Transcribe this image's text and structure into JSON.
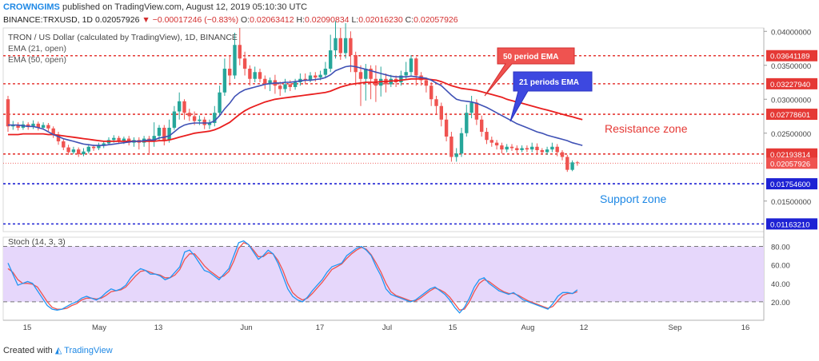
{
  "header": {
    "author": "CROWNGIMS",
    "published": "published on TradingView.com, August 12, 2019 05:10:30 UTC",
    "symbol": "BINANCE:TRXUSD, 1D",
    "last": "0.02057926",
    "change": "−0.00017246 (−0.83%)",
    "o_label": "O:",
    "o": "0.02063412",
    "h_label": "H:",
    "h": "0.02090834",
    "l_label": "L:",
    "l": "0.02016230",
    "c_label": "C:",
    "c": "0.02057926"
  },
  "footer": {
    "created_with": "Created with",
    "brand": "TradingView"
  },
  "colors": {
    "up": "#26a69a",
    "down": "#ef5350",
    "ema21": "#3f51b5",
    "ema50": "#e91e1e",
    "resistance": "#e53935",
    "support": "#1e22d4",
    "stoch_bg": "#e6d7fb",
    "stoch_k": "#2196f3",
    "stoch_d": "#ef5350"
  },
  "chart_data": [
    {
      "type": "line",
      "title": "TRON / US Dollar (calculated by TradingView), 1D, BINANCE",
      "legend": [
        "EMA (21, open)",
        "EMA (50, open)"
      ],
      "price_labels": [
        "0.04000000",
        "0.03500000",
        "0.03000000",
        "0.02500000",
        "0.01500000"
      ],
      "x_labels": [
        "15",
        "May",
        "13",
        "Jun",
        "17",
        "Jul",
        "15",
        "Aug",
        "12",
        "Sep",
        "16"
      ],
      "ylim": [
        0.0105,
        0.0405
      ],
      "resistance_levels": [
        "0.03641189",
        "0.03227940",
        "0.02778601",
        "0.02193814"
      ],
      "support_levels": [
        "0.01754600",
        "0.01163210"
      ],
      "current_price": "0.02057926",
      "annotations": [
        "50 period EMA",
        "21 periods EMA",
        "Resistance zone",
        "Support zone"
      ],
      "candles": [
        [
          0.03,
          0.026,
          0.0305,
          0.0252
        ],
        [
          0.026,
          0.0262,
          0.0268,
          0.0255
        ],
        [
          0.0262,
          0.0258,
          0.0266,
          0.0254
        ],
        [
          0.0258,
          0.0263,
          0.0268,
          0.0255
        ],
        [
          0.0263,
          0.0259,
          0.0266,
          0.0255
        ],
        [
          0.0259,
          0.0264,
          0.0269,
          0.0256
        ],
        [
          0.0264,
          0.0258,
          0.0267,
          0.0254
        ],
        [
          0.0258,
          0.0262,
          0.0266,
          0.0255
        ],
        [
          0.0262,
          0.0257,
          0.0265,
          0.0253
        ],
        [
          0.0257,
          0.0248,
          0.026,
          0.0243
        ],
        [
          0.0248,
          0.0238,
          0.0252,
          0.0233
        ],
        [
          0.0238,
          0.0229,
          0.0242,
          0.0225
        ],
        [
          0.0229,
          0.0222,
          0.0233,
          0.0218
        ],
        [
          0.0222,
          0.0226,
          0.023,
          0.0219
        ],
        [
          0.0226,
          0.0219,
          0.0229,
          0.0215
        ],
        [
          0.0219,
          0.0223,
          0.0228,
          0.0216
        ],
        [
          0.0223,
          0.023,
          0.0234,
          0.022
        ],
        [
          0.023,
          0.0228,
          0.0233,
          0.0224
        ],
        [
          0.0228,
          0.0232,
          0.0236,
          0.0225
        ],
        [
          0.0232,
          0.0235,
          0.0239,
          0.0228
        ],
        [
          0.0235,
          0.024,
          0.0244,
          0.0232
        ],
        [
          0.024,
          0.0243,
          0.0247,
          0.0236
        ],
        [
          0.0243,
          0.0238,
          0.0246,
          0.0234
        ],
        [
          0.0238,
          0.0242,
          0.0245,
          0.0234
        ],
        [
          0.0242,
          0.0236,
          0.0246,
          0.0232
        ],
        [
          0.0236,
          0.024,
          0.0244,
          0.023
        ],
        [
          0.024,
          0.0236,
          0.0244,
          0.0226
        ],
        [
          0.0236,
          0.0242,
          0.0246,
          0.023
        ],
        [
          0.0242,
          0.0238,
          0.0246,
          0.0218
        ],
        [
          0.0238,
          0.0246,
          0.0266,
          0.023
        ],
        [
          0.0246,
          0.0258,
          0.0262,
          0.024
        ],
        [
          0.0258,
          0.024,
          0.0262,
          0.0232
        ],
        [
          0.024,
          0.0258,
          0.027,
          0.0236
        ],
        [
          0.0258,
          0.0282,
          0.029,
          0.0255
        ],
        [
          0.0282,
          0.0297,
          0.031,
          0.027
        ],
        [
          0.0297,
          0.028,
          0.03,
          0.027
        ],
        [
          0.028,
          0.0275,
          0.0286,
          0.0268
        ],
        [
          0.0275,
          0.0268,
          0.0282,
          0.0262
        ],
        [
          0.0268,
          0.027,
          0.0276,
          0.0262
        ],
        [
          0.027,
          0.0262,
          0.0274,
          0.0256
        ],
        [
          0.0262,
          0.0265,
          0.027,
          0.0256
        ],
        [
          0.0265,
          0.028,
          0.029,
          0.026
        ],
        [
          0.028,
          0.031,
          0.032,
          0.0276
        ],
        [
          0.031,
          0.0345,
          0.036,
          0.0305
        ],
        [
          0.0345,
          0.0335,
          0.0365,
          0.032
        ],
        [
          0.0335,
          0.038,
          0.0398,
          0.033
        ],
        [
          0.038,
          0.036,
          0.0405,
          0.035
        ],
        [
          0.036,
          0.0345,
          0.037,
          0.0335
        ],
        [
          0.0345,
          0.033,
          0.035,
          0.032
        ],
        [
          0.033,
          0.034,
          0.0348,
          0.0325
        ],
        [
          0.034,
          0.033,
          0.0345,
          0.0325
        ],
        [
          0.033,
          0.0322,
          0.0335,
          0.0315
        ],
        [
          0.0322,
          0.0328,
          0.0332,
          0.0312
        ],
        [
          0.0328,
          0.032,
          0.0336,
          0.0308
        ],
        [
          0.032,
          0.0315,
          0.0326,
          0.0305
        ],
        [
          0.0315,
          0.0322,
          0.033,
          0.031
        ],
        [
          0.0322,
          0.0318,
          0.0328,
          0.0312
        ],
        [
          0.0318,
          0.0325,
          0.033,
          0.0314
        ],
        [
          0.0325,
          0.033,
          0.0338,
          0.032
        ],
        [
          0.033,
          0.0328,
          0.0338,
          0.0322
        ],
        [
          0.0328,
          0.0335,
          0.034,
          0.0325
        ],
        [
          0.0335,
          0.0332,
          0.034,
          0.0326
        ],
        [
          0.0332,
          0.0336,
          0.0342,
          0.0328
        ],
        [
          0.0336,
          0.0345,
          0.0355,
          0.0332
        ],
        [
          0.0345,
          0.0372,
          0.0395,
          0.034
        ],
        [
          0.0372,
          0.039,
          0.0415,
          0.036
        ],
        [
          0.039,
          0.0368,
          0.0405,
          0.0358
        ],
        [
          0.0368,
          0.039,
          0.0412,
          0.036
        ],
        [
          0.039,
          0.0365,
          0.04,
          0.034
        ],
        [
          0.0365,
          0.034,
          0.037,
          0.032
        ],
        [
          0.034,
          0.033,
          0.035,
          0.029
        ],
        [
          0.033,
          0.0345,
          0.0352,
          0.0298
        ],
        [
          0.0345,
          0.033,
          0.035,
          0.03
        ],
        [
          0.033,
          0.032,
          0.035,
          0.0296
        ],
        [
          0.032,
          0.033,
          0.0348,
          0.0304
        ],
        [
          0.033,
          0.0322,
          0.0338,
          0.031
        ],
        [
          0.0322,
          0.033,
          0.0336,
          0.0318
        ],
        [
          0.033,
          0.0325,
          0.0335,
          0.0318
        ],
        [
          0.0325,
          0.0335,
          0.0342,
          0.032
        ],
        [
          0.0335,
          0.034,
          0.0355,
          0.0328
        ],
        [
          0.034,
          0.036,
          0.0365,
          0.0335
        ],
        [
          0.036,
          0.0335,
          0.0362,
          0.032
        ],
        [
          0.0335,
          0.0328,
          0.034,
          0.032
        ],
        [
          0.0328,
          0.032,
          0.0332,
          0.031
        ],
        [
          0.032,
          0.03,
          0.0325,
          0.029
        ],
        [
          0.03,
          0.029,
          0.0305,
          0.0278
        ],
        [
          0.029,
          0.027,
          0.0295,
          0.026
        ],
        [
          0.027,
          0.0245,
          0.028,
          0.0238
        ],
        [
          0.0245,
          0.0215,
          0.0252,
          0.0208
        ],
        [
          0.0215,
          0.022,
          0.0228,
          0.0208
        ],
        [
          0.022,
          0.025,
          0.0258,
          0.0215
        ],
        [
          0.025,
          0.028,
          0.0292,
          0.0245
        ],
        [
          0.028,
          0.0295,
          0.0305,
          0.0272
        ],
        [
          0.0295,
          0.027,
          0.03,
          0.0262
        ],
        [
          0.027,
          0.0252,
          0.0276,
          0.0245
        ],
        [
          0.0252,
          0.024,
          0.0258,
          0.0234
        ],
        [
          0.024,
          0.0236,
          0.0245,
          0.023
        ],
        [
          0.0236,
          0.0232,
          0.024,
          0.0226
        ],
        [
          0.0232,
          0.0226,
          0.0236,
          0.022
        ],
        [
          0.0226,
          0.023,
          0.0234,
          0.0222
        ],
        [
          0.023,
          0.0228,
          0.0234,
          0.0224
        ],
        [
          0.0228,
          0.0225,
          0.0232,
          0.022
        ],
        [
          0.0225,
          0.0228,
          0.0232,
          0.0222
        ],
        [
          0.0228,
          0.0226,
          0.0232,
          0.0222
        ],
        [
          0.0226,
          0.023,
          0.0236,
          0.0222
        ],
        [
          0.023,
          0.0225,
          0.0235,
          0.022
        ],
        [
          0.0225,
          0.0222,
          0.0228,
          0.0218
        ],
        [
          0.0222,
          0.0226,
          0.023,
          0.0218
        ],
        [
          0.0226,
          0.023,
          0.0236,
          0.0222
        ],
        [
          0.023,
          0.0222,
          0.0234,
          0.0216
        ],
        [
          0.0222,
          0.0215,
          0.0225,
          0.021
        ],
        [
          0.0215,
          0.0196,
          0.0218,
          0.0193
        ],
        [
          0.0196,
          0.0207,
          0.021,
          0.0194
        ],
        [
          0.0207,
          0.0206,
          0.0209,
          0.0202
        ]
      ],
      "ema21": [
        0.0262,
        0.0262,
        0.0262,
        0.0261,
        0.026,
        0.026,
        0.0258,
        0.0256,
        0.0252,
        0.0248,
        0.0245,
        0.0242,
        0.024,
        0.0238,
        0.0236,
        0.0234,
        0.0233,
        0.0232,
        0.0232,
        0.0232,
        0.0233,
        0.0234,
        0.0235,
        0.0236,
        0.0237,
        0.0238,
        0.0238,
        0.0239,
        0.024,
        0.024,
        0.0243,
        0.0244,
        0.0246,
        0.0252,
        0.0258,
        0.0262,
        0.0264,
        0.0265,
        0.0265,
        0.0265,
        0.0265,
        0.0268,
        0.0276,
        0.0286,
        0.0294,
        0.0304,
        0.031,
        0.0314,
        0.0316,
        0.0318,
        0.032,
        0.0322,
        0.0323,
        0.0324,
        0.0324,
        0.0325,
        0.0325,
        0.0326,
        0.0327,
        0.0328,
        0.0328,
        0.0329,
        0.033,
        0.0332,
        0.0336,
        0.0342,
        0.0345,
        0.0348,
        0.0349,
        0.0348,
        0.0346,
        0.0344,
        0.0342,
        0.034,
        0.0338,
        0.0336,
        0.0334,
        0.0333,
        0.0333,
        0.0333,
        0.0334,
        0.0333,
        0.0332,
        0.0331,
        0.0328,
        0.0324,
        0.032,
        0.0313,
        0.0306,
        0.03,
        0.0298,
        0.0297,
        0.0296,
        0.0294,
        0.0291,
        0.0288,
        0.0284,
        0.028,
        0.0276,
        0.0272,
        0.0268,
        0.0264,
        0.0261,
        0.0258,
        0.0255,
        0.0252,
        0.025,
        0.0247,
        0.0245,
        0.0243,
        0.0241,
        0.0239,
        0.0236,
        0.0234,
        0.0232
      ],
      "ema50": [
        0.0248,
        0.0248,
        0.0248,
        0.0249,
        0.0249,
        0.0249,
        0.0249,
        0.0249,
        0.0248,
        0.0248,
        0.0247,
        0.0246,
        0.0245,
        0.0244,
        0.0243,
        0.0242,
        0.0241,
        0.024,
        0.0239,
        0.0238,
        0.0238,
        0.0238,
        0.0238,
        0.0238,
        0.0238,
        0.0238,
        0.0238,
        0.0238,
        0.0238,
        0.0238,
        0.0239,
        0.0239,
        0.024,
        0.0242,
        0.0244,
        0.0246,
        0.0248,
        0.025,
        0.0251,
        0.0252,
        0.0253,
        0.0255,
        0.0258,
        0.0262,
        0.0266,
        0.0272,
        0.0278,
        0.0283,
        0.0287,
        0.029,
        0.0293,
        0.0296,
        0.0298,
        0.03,
        0.0301,
        0.0302,
        0.0303,
        0.0304,
        0.0305,
        0.0306,
        0.0307,
        0.0308,
        0.0309,
        0.031,
        0.0312,
        0.0315,
        0.0318,
        0.032,
        0.0322,
        0.0323,
        0.0324,
        0.0325,
        0.0325,
        0.0325,
        0.0326,
        0.0326,
        0.0327,
        0.0327,
        0.0328,
        0.0329,
        0.033,
        0.033,
        0.033,
        0.033,
        0.0329,
        0.0328,
        0.0326,
        0.0323,
        0.032,
        0.0318,
        0.0316,
        0.0315,
        0.0314,
        0.0313,
        0.0311,
        0.0309,
        0.0307,
        0.0305,
        0.0303,
        0.03,
        0.0298,
        0.0296,
        0.0294,
        0.0292,
        0.029,
        0.0288,
        0.0286,
        0.0284,
        0.0282,
        0.028,
        0.0278,
        0.0276,
        0.0274,
        0.0272,
        0.027
      ]
    },
    {
      "type": "line",
      "title": "Stoch (14, 3, 3)",
      "ylim": [
        0,
        90
      ],
      "y_labels": [
        "80.00",
        "60.00",
        "40.00",
        "20.00"
      ],
      "levels": [
        80,
        20
      ],
      "series": [
        {
          "values": [
            62,
            50,
            38,
            40,
            42,
            40,
            32,
            24,
            16,
            12,
            11,
            12,
            15,
            18,
            20,
            24,
            26,
            24,
            22,
            25,
            30,
            34,
            32,
            34,
            38,
            46,
            52,
            56,
            54,
            50,
            50,
            48,
            44,
            46,
            52,
            58,
            74,
            76,
            70,
            62,
            54,
            52,
            48,
            44,
            50,
            56,
            70,
            84,
            86,
            82,
            74,
            66,
            70,
            76,
            72,
            62,
            48,
            34,
            26,
            22,
            20,
            25,
            32,
            38,
            44,
            52,
            58,
            60,
            62,
            70,
            74,
            78,
            80,
            76,
            70,
            58,
            48,
            34,
            28,
            26,
            24,
            22,
            20,
            22,
            26,
            30,
            34,
            36,
            32,
            28,
            22,
            14,
            8,
            14,
            24,
            36,
            44,
            46,
            40,
            36,
            32,
            30,
            28,
            30,
            26,
            22,
            20,
            18,
            16,
            14,
            12,
            18,
            26,
            30,
            30,
            29,
            33
          ]
        },
        {
          "values": [
            56,
            52,
            44,
            40,
            40,
            39,
            36,
            28,
            20,
            14,
            12,
            12,
            13,
            16,
            18,
            22,
            24,
            24,
            23,
            24,
            27,
            31,
            32,
            33,
            36,
            42,
            48,
            53,
            54,
            52,
            50,
            49,
            46,
            46,
            49,
            55,
            66,
            72,
            72,
            66,
            59,
            54,
            50,
            46,
            48,
            53,
            64,
            78,
            84,
            82,
            76,
            69,
            69,
            73,
            72,
            65,
            54,
            40,
            30,
            25,
            22,
            24,
            29,
            35,
            41,
            48,
            55,
            58,
            61,
            67,
            72,
            76,
            79,
            77,
            71,
            62,
            52,
            40,
            31,
            27,
            25,
            23,
            21,
            21,
            24,
            28,
            32,
            35,
            33,
            30,
            25,
            18,
            11,
            12,
            20,
            31,
            40,
            44,
            42,
            38,
            34,
            31,
            29,
            29,
            27,
            24,
            21,
            19,
            17,
            15,
            13,
            15,
            21,
            27,
            29,
            29,
            31
          ]
        }
      ]
    }
  ]
}
